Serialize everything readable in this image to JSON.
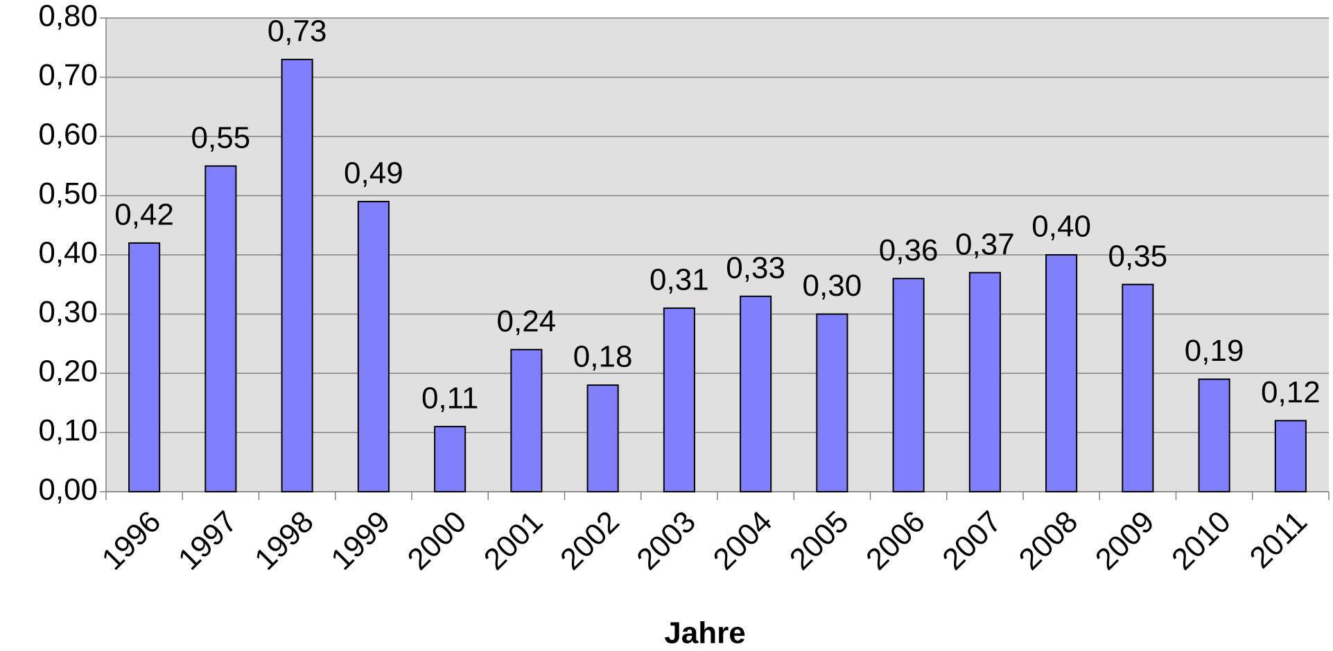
{
  "chart_data": {
    "type": "bar",
    "x_label": "Jahre",
    "categories": [
      "1996",
      "1997",
      "1998",
      "1999",
      "2000",
      "2001",
      "2002",
      "2003",
      "2004",
      "2005",
      "2006",
      "2007",
      "2008",
      "2009",
      "2010",
      "2011"
    ],
    "values": [
      0.42,
      0.55,
      0.73,
      0.49,
      0.11,
      0.24,
      0.18,
      0.31,
      0.33,
      0.3,
      0.36,
      0.37,
      0.4,
      0.35,
      0.19,
      0.12
    ],
    "value_labels": [
      "0,42",
      "0,55",
      "0,73",
      "0,49",
      "0,11",
      "0,24",
      "0,18",
      "0,31",
      "0,33",
      "0,30",
      "0,36",
      "0,37",
      "0,40",
      "0,35",
      "0,19",
      "0,12"
    ],
    "color": "#8080ff",
    "ylim": [
      0,
      0.8
    ],
    "yticks": [
      {
        "value": 0,
        "label": "0,00"
      },
      {
        "value": 0.1,
        "label": "0,10"
      },
      {
        "value": 0.2,
        "label": "0,20"
      },
      {
        "value": 0.3,
        "label": "0,30"
      },
      {
        "value": 0.4,
        "label": "0,40"
      },
      {
        "value": 0.5,
        "label": "0,50"
      },
      {
        "value": 0.6,
        "label": "0,60"
      },
      {
        "value": 0.7,
        "label": "0,70"
      },
      {
        "value": 0.8,
        "label": "0,80"
      }
    ],
    "grid": true
  }
}
